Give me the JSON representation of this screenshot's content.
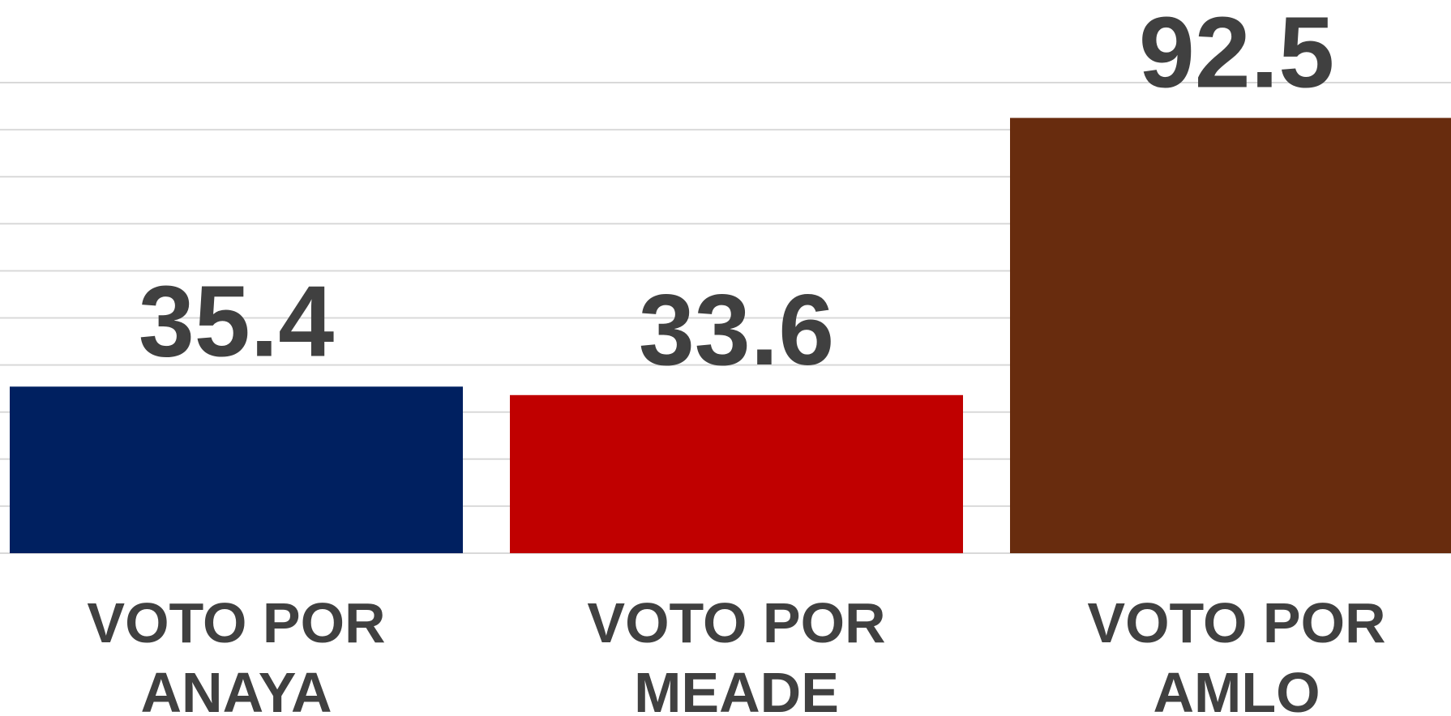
{
  "chart_data": {
    "type": "bar",
    "categories": [
      "VOTO POR ANAYA",
      "VOTO POR MEADE",
      "VOTO POR AMLO"
    ],
    "values": [
      35.4,
      33.6,
      92.5
    ],
    "colors": [
      "#002060",
      "#c00000",
      "#682c0e"
    ],
    "ylim": [
      0,
      100
    ],
    "yticks": [
      0,
      10,
      20,
      30,
      40,
      50,
      60,
      70,
      80,
      90,
      100
    ],
    "grid": true
  }
}
